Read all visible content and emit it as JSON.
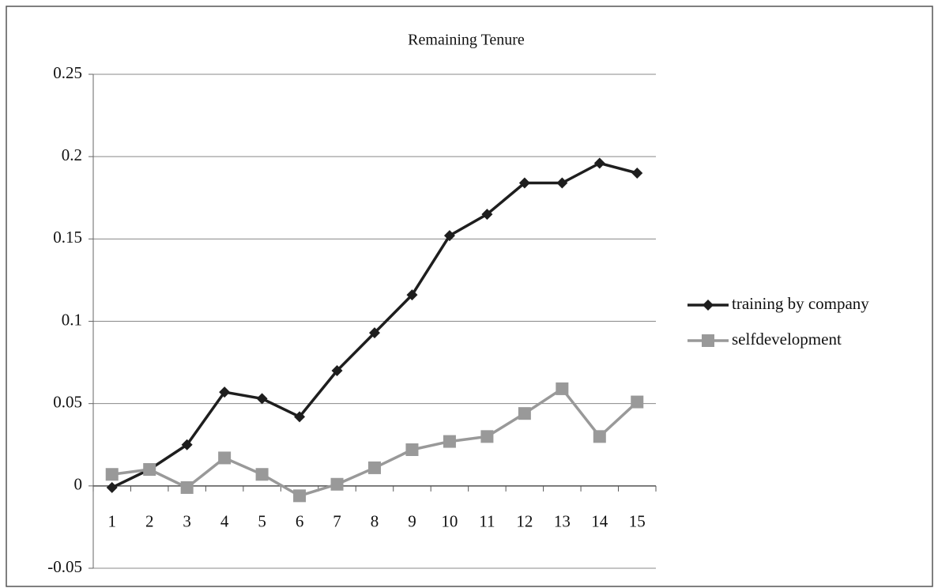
{
  "chart_data": {
    "type": "line",
    "title": "Remaining Tenure",
    "categories": [
      "1",
      "2",
      "3",
      "4",
      "5",
      "6",
      "7",
      "8",
      "9",
      "10",
      "11",
      "12",
      "13",
      "14",
      "15"
    ],
    "series": [
      {
        "name": "training by company",
        "color": "#1e1e1e",
        "marker": "diamond",
        "values": [
          -0.001,
          0.01,
          0.025,
          0.057,
          0.053,
          0.042,
          0.07,
          0.093,
          0.116,
          0.152,
          0.165,
          0.184,
          0.184,
          0.196,
          0.19
        ]
      },
      {
        "name": "selfdevelopment",
        "color": "#999999",
        "marker": "square",
        "values": [
          0.007,
          0.01,
          -0.001,
          0.017,
          0.007,
          -0.006,
          0.001,
          0.011,
          0.022,
          0.027,
          0.03,
          0.044,
          0.059,
          0.03,
          0.051
        ]
      }
    ],
    "ylim": [
      -0.05,
      0.25
    ],
    "yticks": [
      -0.05,
      0,
      0.05,
      0.1,
      0.15,
      0.2,
      0.25
    ],
    "grid": true,
    "legend": "right"
  }
}
